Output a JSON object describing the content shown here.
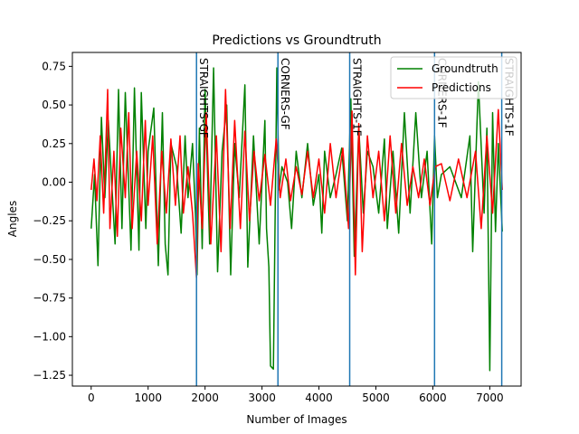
{
  "chart_data": {
    "type": "line",
    "title": "Predictions vs Groundtruth",
    "xlabel": "Number of Images",
    "ylabel": "Angles",
    "xlim": [
      -330,
      7550
    ],
    "ylim": [
      -1.32,
      0.84
    ],
    "xticks": [
      0,
      1000,
      2000,
      3000,
      4000,
      5000,
      6000,
      7000
    ],
    "xtick_labels": [
      "0",
      "1000",
      "2000",
      "3000",
      "4000",
      "5000",
      "6000",
      "7000"
    ],
    "yticks": [
      -1.25,
      -1.0,
      -0.75,
      -0.5,
      -0.25,
      0.0,
      0.25,
      0.5,
      0.75
    ],
    "ytick_labels": [
      "−1.25",
      "−1.00",
      "−0.75",
      "−0.50",
      "−0.25",
      "0.00",
      "0.25",
      "0.50",
      "0.75"
    ],
    "grid": false,
    "legend_position": "top-right",
    "colors": {
      "groundtruth": "#008000",
      "predictions": "#ff0000",
      "vlines": "#1f77b4"
    },
    "series": [
      {
        "name": "Groundtruth",
        "x": [
          0,
          60,
          120,
          180,
          240,
          300,
          420,
          480,
          540,
          600,
          700,
          760,
          840,
          880,
          960,
          1000,
          1100,
          1180,
          1250,
          1300,
          1350,
          1400,
          1500,
          1580,
          1650,
          1700,
          1780,
          1830,
          1860,
          1900,
          1950,
          2000,
          2080,
          2150,
          2220,
          2300,
          2380,
          2450,
          2520,
          2600,
          2700,
          2750,
          2850,
          2950,
          3050,
          3080,
          3120,
          3150,
          3200,
          3260,
          3300,
          3350,
          3450,
          3520,
          3600,
          3700,
          3800,
          3900,
          4000,
          4050,
          4100,
          4200,
          4300,
          4400,
          4500,
          4560,
          4620,
          4700,
          4780,
          4850,
          4950,
          5050,
          5150,
          5200,
          5300,
          5400,
          5500,
          5600,
          5700,
          5800,
          5900,
          5980,
          6030,
          6080,
          6150,
          6300,
          6500,
          6650,
          6700,
          6800,
          6900,
          6950,
          7000,
          7050,
          7100,
          7150,
          7220
        ],
        "values": [
          -0.3,
          0.05,
          -0.54,
          0.42,
          -0.1,
          0.4,
          -0.4,
          0.6,
          -0.3,
          0.58,
          -0.44,
          0.61,
          -0.44,
          0.58,
          -0.3,
          0.2,
          0.48,
          -0.54,
          0.45,
          -0.4,
          -0.6,
          0.25,
          0.1,
          -0.33,
          0.3,
          -0.1,
          0.25,
          -0.2,
          -0.6,
          0.35,
          -0.43,
          0.6,
          -0.4,
          0.74,
          -0.58,
          0.2,
          0.5,
          -0.6,
          0.25,
          -0.1,
          0.63,
          -0.55,
          0.3,
          -0.4,
          0.4,
          -0.3,
          -0.55,
          -1.19,
          -1.21,
          0.74,
          -0.05,
          0.1,
          0.0,
          -0.3,
          0.2,
          -0.1,
          0.25,
          -0.15,
          0.05,
          -0.33,
          0.2,
          -0.1,
          0.05,
          0.22,
          -0.25,
          0.54,
          -0.48,
          0.35,
          -0.2,
          0.2,
          0.1,
          -0.2,
          0.28,
          -0.3,
          0.2,
          -0.33,
          0.45,
          -0.2,
          0.45,
          -0.1,
          0.2,
          -0.4,
          0.3,
          -0.1,
          0.05,
          0.1,
          -0.1,
          0.3,
          -0.45,
          0.65,
          -0.2,
          0.35,
          -1.22,
          0.45,
          -0.32,
          0.25,
          -0.32
        ]
      },
      {
        "name": "Predictions",
        "x": [
          0,
          50,
          100,
          160,
          220,
          290,
          330,
          400,
          460,
          520,
          600,
          660,
          720,
          800,
          880,
          950,
          1000,
          1080,
          1160,
          1240,
          1320,
          1400,
          1480,
          1560,
          1620,
          1700,
          1780,
          1850,
          1880,
          1950,
          2020,
          2100,
          2200,
          2280,
          2360,
          2440,
          2520,
          2620,
          2700,
          2780,
          2860,
          2950,
          3050,
          3150,
          3250,
          3320,
          3420,
          3500,
          3600,
          3700,
          3800,
          3900,
          4000,
          4100,
          4200,
          4300,
          4420,
          4520,
          4580,
          4640,
          4700,
          4760,
          4850,
          4950,
          5050,
          5150,
          5250,
          5350,
          5450,
          5550,
          5650,
          5750,
          5850,
          5950,
          6040,
          6150,
          6300,
          6450,
          6600,
          6750,
          6850,
          6950,
          7050,
          7150,
          7220
        ],
        "values": [
          -0.05,
          0.15,
          -0.12,
          0.3,
          -0.2,
          0.6,
          -0.3,
          0.2,
          -0.35,
          0.35,
          -0.1,
          0.45,
          -0.3,
          0.2,
          -0.25,
          0.4,
          -0.15,
          0.3,
          -0.4,
          0.2,
          -0.2,
          0.28,
          -0.15,
          0.3,
          -0.2,
          0.1,
          -0.2,
          -0.62,
          0.12,
          -0.3,
          0.45,
          -0.4,
          0.3,
          -0.45,
          0.6,
          -0.3,
          0.4,
          -0.3,
          0.33,
          -0.25,
          0.2,
          -0.12,
          0.18,
          -0.15,
          0.28,
          -0.1,
          0.15,
          -0.12,
          0.1,
          -0.08,
          0.2,
          -0.1,
          0.15,
          -0.2,
          0.25,
          -0.1,
          0.22,
          -0.3,
          0.46,
          -0.6,
          0.38,
          -0.45,
          0.3,
          -0.1,
          0.2,
          -0.25,
          0.3,
          -0.2,
          0.25,
          -0.15,
          0.1,
          -0.1,
          0.15,
          -0.15,
          0.1,
          0.12,
          -0.12,
          0.15,
          -0.1,
          0.2,
          -0.3,
          0.3,
          -0.2,
          0.47,
          -0.05
        ]
      }
    ],
    "vlines": [
      {
        "x": 1850,
        "label": "STRAIGHTS-GF"
      },
      {
        "x": 3280,
        "label": "CORNERS-GF"
      },
      {
        "x": 4540,
        "label": "STRAIGHTS-1F"
      },
      {
        "x": 6030,
        "label": "CORNERS-1F"
      },
      {
        "x": 7210,
        "label": "STRAIGHTS-1F"
      }
    ]
  }
}
